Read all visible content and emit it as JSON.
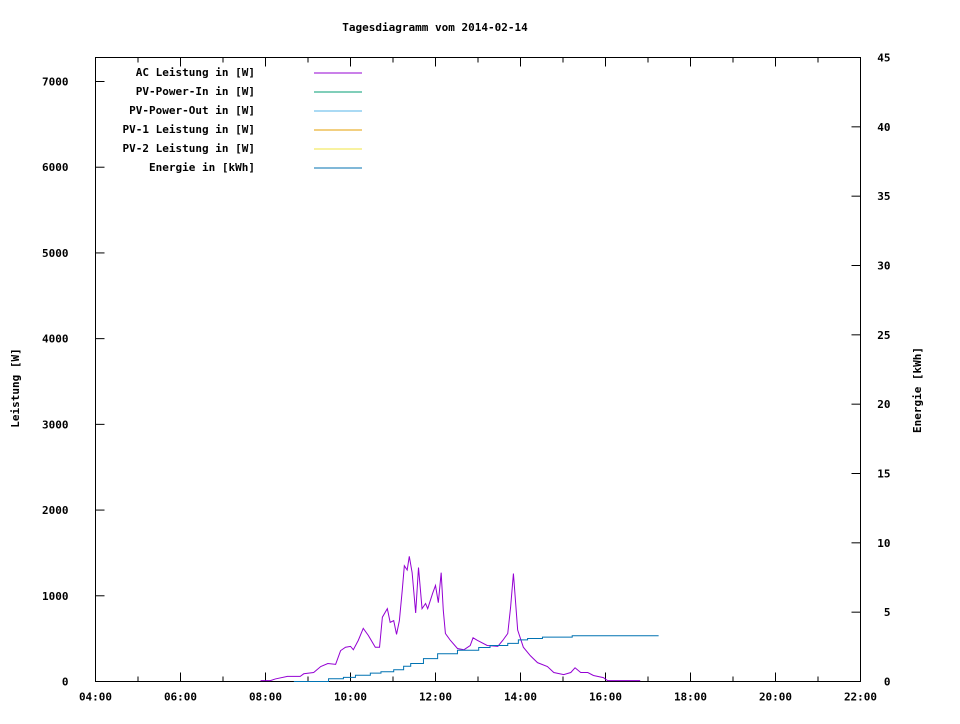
{
  "chart_data": {
    "type": "line",
    "title": "Tagesdiagramm vom 2014-02-14",
    "xlabel": "",
    "ylabel": "Leistung [W]",
    "y2label": "Energie [kWh]",
    "xlim": [
      "04:00",
      "22:00"
    ],
    "ylim": [
      0,
      7280
    ],
    "y2lim": [
      0,
      45
    ],
    "xticks": [
      "04:00",
      "06:00",
      "08:00",
      "10:00",
      "12:00",
      "14:00",
      "16:00",
      "18:00",
      "20:00",
      "22:00"
    ],
    "yticks": [
      0,
      1000,
      2000,
      3000,
      4000,
      5000,
      6000,
      7000
    ],
    "y2ticks": [
      0,
      5,
      10,
      15,
      20,
      25,
      30,
      35,
      40,
      45
    ],
    "grid": false,
    "legend_position": "top-left",
    "series": [
      {
        "name": "AC Leistung in [W]",
        "axis": "left",
        "color": "#9400d3",
        "x": [
          "07:53",
          "08:07",
          "08:14",
          "08:31",
          "08:49",
          "08:54",
          "09:08",
          "09:18",
          "09:28",
          "09:39",
          "09:46",
          "09:53",
          "10:00",
          "10:04",
          "10:11",
          "10:18",
          "10:25",
          "10:35",
          "10:41",
          "10:45",
          "10:52",
          "10:56",
          "11:01",
          "11:05",
          "11:09",
          "11:13",
          "11:16",
          "11:20",
          "11:23",
          "11:27",
          "11:32",
          "11:36",
          "11:41",
          "11:46",
          "11:49",
          "11:56",
          "12:00",
          "12:04",
          "12:08",
          "12:11",
          "12:14",
          "12:21",
          "12:31",
          "12:40",
          "12:49",
          "12:53",
          "12:59",
          "13:13",
          "13:28",
          "13:35",
          "13:42",
          "13:46",
          "13:50",
          "13:56",
          "14:04",
          "14:14",
          "14:24",
          "14:38",
          "14:47",
          "15:01",
          "15:11",
          "15:17",
          "15:25",
          "15:35",
          "15:43",
          "15:57",
          "16:03",
          "16:49"
        ],
        "y": [
          10,
          10,
          30,
          60,
          60,
          90,
          105,
          175,
          210,
          200,
          360,
          400,
          410,
          370,
          480,
          620,
          540,
          400,
          400,
          750,
          850,
          690,
          710,
          550,
          710,
          1060,
          1350,
          1300,
          1460,
          1270,
          800,
          1330,
          850,
          910,
          850,
          1030,
          1120,
          920,
          1270,
          830,
          560,
          480,
          385,
          370,
          420,
          510,
          480,
          420,
          410,
          480,
          560,
          865,
          1260,
          600,
          400,
          300,
          220,
          175,
          105,
          80,
          105,
          160,
          105,
          105,
          70,
          45,
          10,
          10
        ]
      },
      {
        "name": "PV-Power-In in [W]",
        "axis": "left",
        "color": "#009e73",
        "x": [],
        "y": []
      },
      {
        "name": "PV-Power-Out in [W]",
        "axis": "left",
        "color": "#56b4e9",
        "x": [],
        "y": []
      },
      {
        "name": "PV-1 Leistung in [W]",
        "axis": "left",
        "color": "#e69f00",
        "x": [],
        "y": []
      },
      {
        "name": "PV-2 Leistung in [W]",
        "axis": "left",
        "color": "#f0e442",
        "x": [],
        "y": []
      },
      {
        "name": "Energie in [kWh]",
        "axis": "right",
        "color": "#0072b2",
        "step": true,
        "x": [
          "08:40",
          "09:29",
          "09:50",
          "10:07",
          "10:28",
          "10:43",
          "11:01",
          "11:15",
          "11:25",
          "11:43",
          "12:03",
          "12:31",
          "13:01",
          "13:17",
          "13:42",
          "13:57",
          "14:10",
          "14:31",
          "15:13",
          "17:15"
        ],
        "y": [
          0,
          0.2,
          0.3,
          0.45,
          0.6,
          0.7,
          0.85,
          1.1,
          1.3,
          1.65,
          2.0,
          2.25,
          2.45,
          2.6,
          2.75,
          3.0,
          3.1,
          3.2,
          3.3,
          3.3
        ]
      }
    ]
  }
}
